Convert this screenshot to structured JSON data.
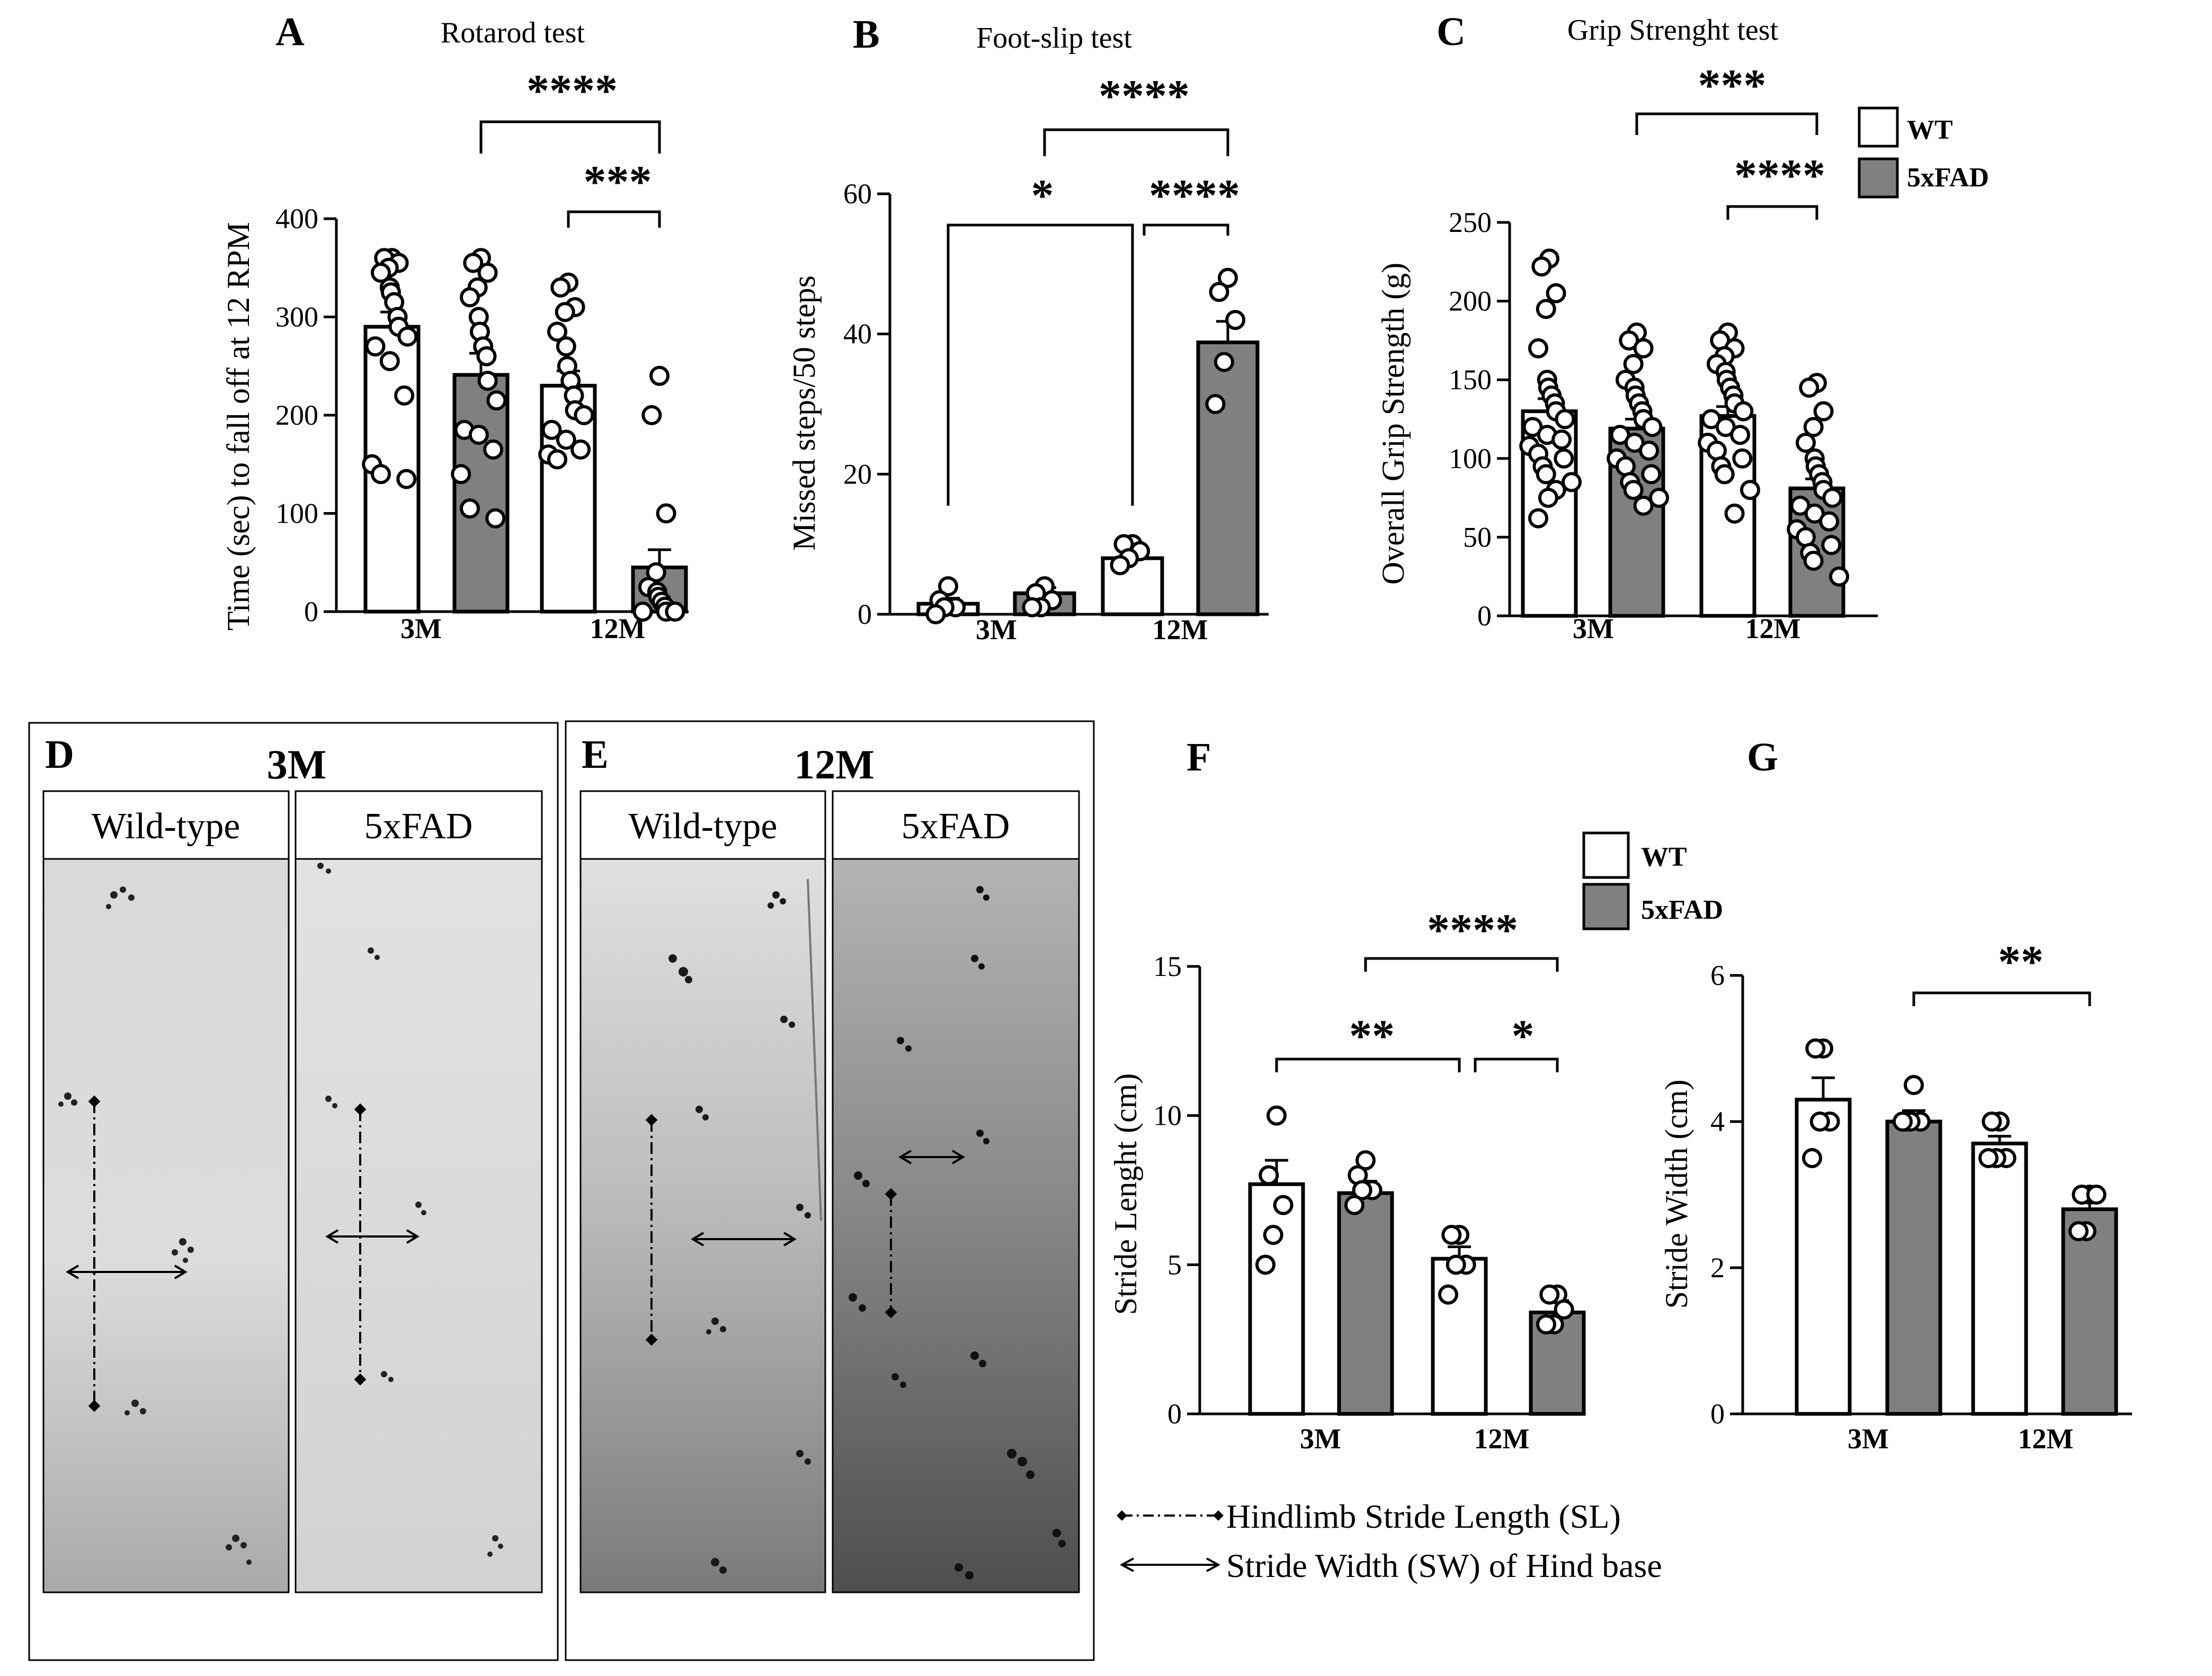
{
  "figure": {
    "legend_top": {
      "wt": "WT",
      "fad": "5xFAD"
    },
    "legend_f": {
      "wt": "WT",
      "fad": "5xFAD"
    },
    "colors": {
      "wt": "#ffffff",
      "fad": "#808080",
      "line": "#000000"
    }
  },
  "chart_data": [
    {
      "panel": "A",
      "title": "Rotarod test",
      "type": "bar",
      "ylabel": "Time (sec) to fall off at 12 RPM",
      "ylim": [
        0,
        400
      ],
      "yticks": [
        "0",
        "100",
        "200",
        "300",
        "400"
      ],
      "categories": [
        "3M",
        "12M"
      ],
      "series": [
        {
          "name": "WT",
          "values": [
            290,
            230
          ],
          "sem": [
            15,
            15
          ]
        },
        {
          "name": "5xFAD",
          "values": [
            241,
            45
          ],
          "sem": [
            22,
            18
          ]
        }
      ],
      "points": [
        [
          360,
          360,
          355,
          350,
          345,
          330,
          325,
          315,
          300,
          290,
          280,
          270,
          255,
          220,
          150,
          140,
          135
        ],
        [
          360,
          355,
          345,
          330,
          320,
          300,
          285,
          270,
          260,
          235,
          215,
          185,
          180,
          165,
          140,
          105,
          95
        ],
        [
          335,
          330,
          310,
          305,
          285,
          270,
          250,
          235,
          220,
          205,
          200,
          185,
          175,
          165,
          160,
          155
        ],
        [
          240,
          200,
          100,
          40,
          25,
          20,
          15,
          10,
          5,
          0,
          0,
          0
        ]
      ],
      "significance": [
        {
          "label": "****",
          "from": "3M 5xFAD",
          "to": "12M 5xFAD"
        },
        {
          "label": "***",
          "from": "12M WT",
          "to": "12M 5xFAD"
        }
      ]
    },
    {
      "panel": "B",
      "title": "Foot-slip test",
      "type": "bar",
      "ylabel": "Missed steps/50 steps",
      "ylim": [
        0,
        60
      ],
      "yticks": [
        "0",
        "20",
        "40",
        "60"
      ],
      "categories": [
        "3M",
        "12M"
      ],
      "series": [
        {
          "name": "WT",
          "values": [
            1.5,
            8
          ],
          "sem": [
            0.8,
            0.5
          ]
        },
        {
          "name": "5xFAD",
          "values": [
            3,
            38.8
          ],
          "sem": [
            0.8,
            3
          ]
        }
      ],
      "points": [
        [
          4,
          2,
          1,
          1,
          0
        ],
        [
          4,
          3,
          2,
          1,
          1
        ],
        [
          10,
          10,
          9,
          8,
          7
        ],
        [
          48,
          46,
          42,
          36,
          30
        ]
      ],
      "significance": [
        {
          "label": "****",
          "from": "3M 5xFAD",
          "to": "12M 5xFAD"
        },
        {
          "label": "*",
          "from": "3M WT",
          "to": "12M WT"
        },
        {
          "label": "****",
          "from": "12M WT",
          "to": "12M 5xFAD"
        }
      ]
    },
    {
      "panel": "C",
      "title": "Grip Strenght test",
      "type": "bar",
      "ylabel": "Overall Grip Strength (g)",
      "ylim": [
        0,
        250
      ],
      "yticks": [
        "0",
        "50",
        "100",
        "150",
        "200",
        "250"
      ],
      "categories": [
        "3M",
        "12M"
      ],
      "series": [
        {
          "name": "WT",
          "values": [
            130,
            127
          ],
          "sem": [
            8,
            6
          ]
        },
        {
          "name": "5xFAD",
          "values": [
            119,
            81
          ],
          "sem": [
            6,
            6
          ]
        }
      ],
      "points": [
        [
          227,
          222,
          205,
          195,
          170,
          150,
          145,
          140,
          135,
          130,
          125,
          120,
          115,
          112,
          108,
          103,
          100,
          95,
          90,
          85,
          80,
          75,
          62
        ],
        [
          180,
          175,
          170,
          160,
          150,
          145,
          140,
          135,
          130,
          125,
          120,
          115,
          110,
          105,
          100,
          95,
          90,
          85,
          80,
          75,
          70
        ],
        [
          180,
          175,
          170,
          165,
          160,
          155,
          150,
          145,
          140,
          135,
          130,
          125,
          120,
          115,
          110,
          105,
          100,
          95,
          90,
          80,
          65
        ],
        [
          148,
          145,
          130,
          120,
          110,
          100,
          95,
          90,
          85,
          80,
          75,
          70,
          65,
          60,
          55,
          50,
          45,
          40,
          35,
          25
        ]
      ],
      "significance": [
        {
          "label": "***",
          "from": "3M 5xFAD",
          "to": "12M 5xFAD"
        },
        {
          "label": "****",
          "from": "12M WT",
          "to": "12M 5xFAD"
        }
      ]
    },
    {
      "panel": "F",
      "title": "",
      "type": "bar",
      "ylabel": "Stride Lenght (cm)",
      "ylim": [
        0,
        15
      ],
      "yticks": [
        "0",
        "5",
        "10",
        "15"
      ],
      "categories": [
        "3M",
        "12M"
      ],
      "series": [
        {
          "name": "WT",
          "values": [
            7.7,
            5.2
          ],
          "sem": [
            0.8,
            0.4
          ]
        },
        {
          "name": "5xFAD",
          "values": [
            7.4,
            3.4
          ],
          "sem": [
            0.4,
            0.4
          ]
        }
      ],
      "points": [
        [
          10,
          8,
          7,
          6,
          5
        ],
        [
          8.5,
          8,
          7.5,
          7.5,
          7
        ],
        [
          6,
          6,
          5,
          5,
          4
        ],
        [
          4,
          4,
          3.5,
          3,
          3
        ]
      ],
      "significance": [
        {
          "label": "****",
          "from": "3M 5xFAD",
          "to": "12M 5xFAD"
        },
        {
          "label": "**",
          "from": "3M WT",
          "to": "12M WT"
        },
        {
          "label": "*",
          "from": "12M WT",
          "to": "12M 5xFAD"
        }
      ]
    },
    {
      "panel": "G",
      "title": "",
      "type": "bar",
      "ylabel": "Stride Width (cm)",
      "ylim": [
        0,
        6
      ],
      "yticks": [
        "0",
        "2",
        "4",
        "6"
      ],
      "categories": [
        "3M",
        "12M"
      ],
      "series": [
        {
          "name": "WT",
          "values": [
            4.3,
            3.7
          ],
          "sem": [
            0.3,
            0.1
          ]
        },
        {
          "name": "5xFAD",
          "values": [
            4.0,
            2.8
          ],
          "sem": [
            0.15,
            0.1
          ]
        }
      ],
      "points": [
        [
          5,
          5,
          4,
          4,
          3.5
        ],
        [
          4.5,
          4,
          4,
          4,
          4
        ],
        [
          4,
          4,
          3.5,
          3.5,
          3.5
        ],
        [
          3,
          3,
          3,
          2.5,
          2.5
        ]
      ],
      "significance": [
        {
          "label": "**",
          "from": "3M 5xFAD",
          "to": "12M 5xFAD"
        }
      ]
    }
  ],
  "images": {
    "D": {
      "label": "D",
      "title": "3M",
      "left": "Wild-type",
      "right": "5xFAD"
    },
    "E": {
      "label": "E",
      "title": "12M",
      "left": "Wild-type",
      "right": "5xFAD"
    }
  },
  "notes": {
    "sl": "Hindlimb Stride Length (SL)",
    "sw": "Stride Width  (SW) of Hind base"
  }
}
